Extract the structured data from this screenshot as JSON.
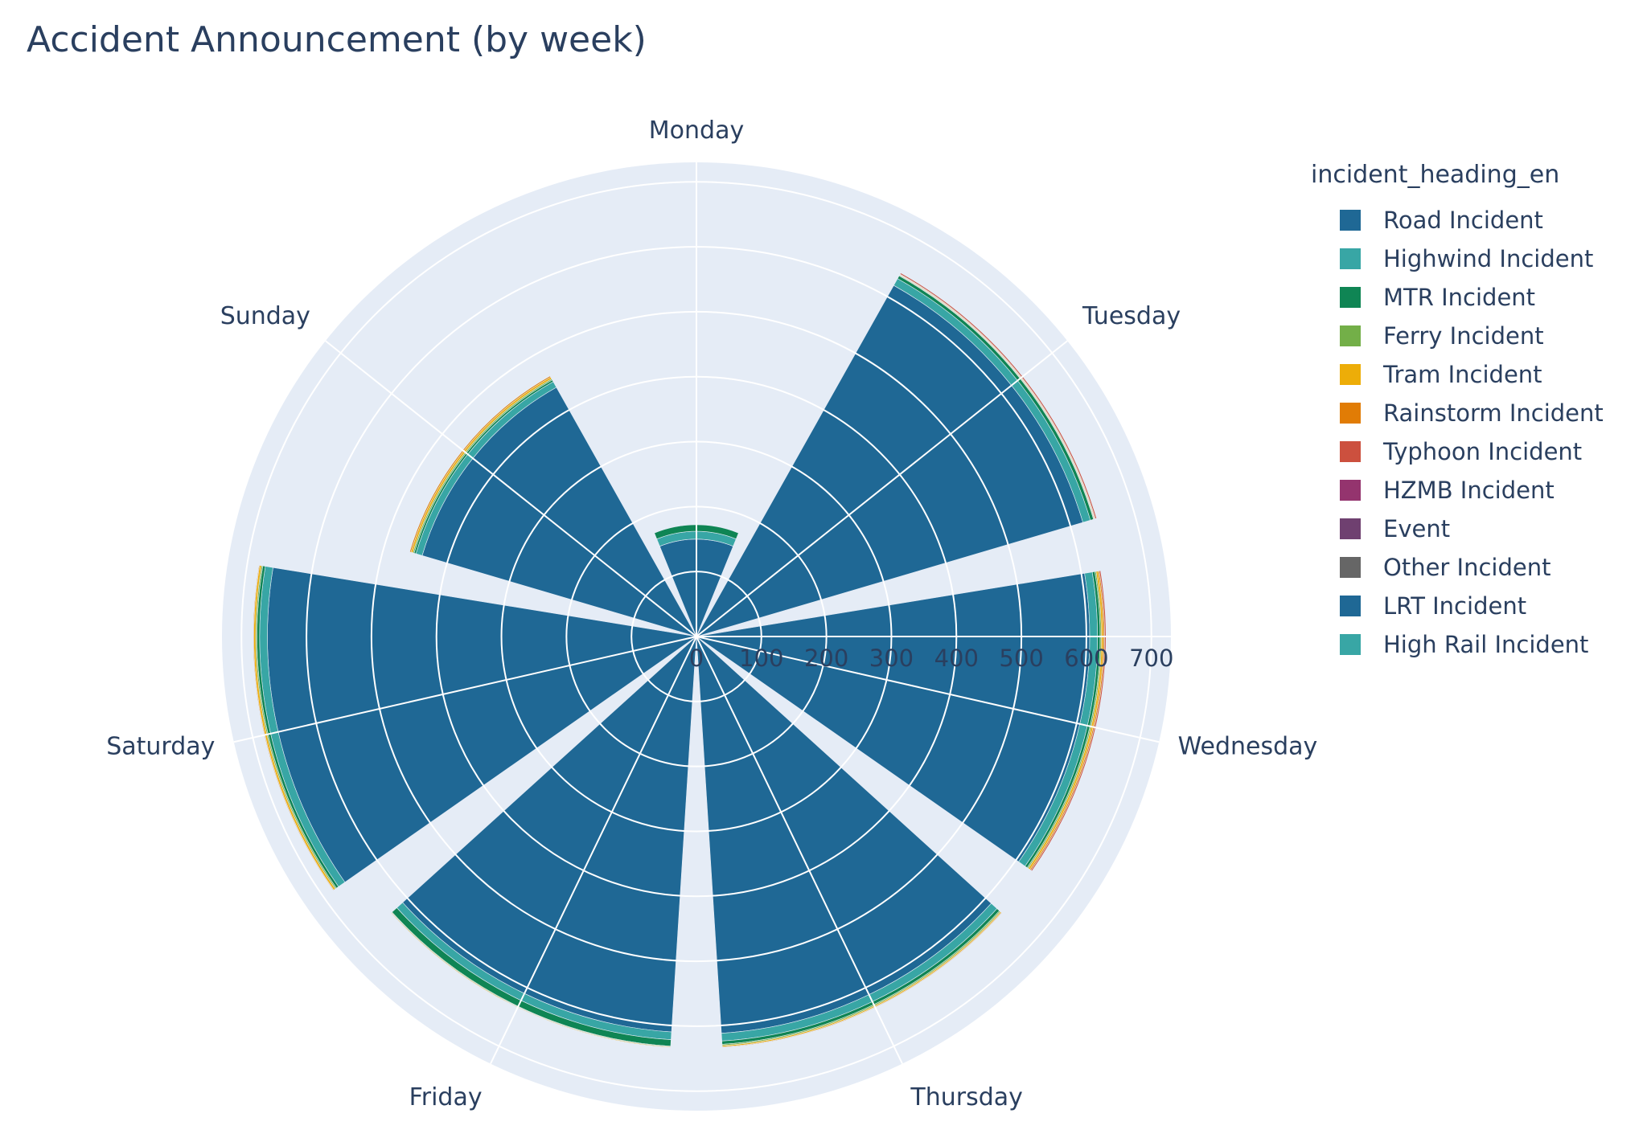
{
  "chart_data": {
    "type": "barpolar",
    "title": "Accident Announcement (by week)",
    "legend_title": "incident_heading_en",
    "legend_position": "right",
    "radial_range": [
      0,
      730
    ],
    "radial_ticks": [
      0,
      100,
      200,
      300,
      400,
      500,
      600,
      700
    ],
    "radial_tick_labels": [
      "0",
      "100",
      "200",
      "300",
      "400",
      "500",
      "600",
      "700"
    ],
    "grid": true,
    "categories": [
      "Monday",
      "Tuesday",
      "Wednesday",
      "Thursday",
      "Friday",
      "Saturday",
      "Sunday"
    ],
    "series": [
      {
        "name": "Road Incident",
        "color": "#1f6895",
        "values": [
          150,
          620,
          605,
          612,
          610,
          660,
          440
        ]
      },
      {
        "name": "Highwind Incident",
        "color": "#38a6a5",
        "values": [
          12,
          12,
          12,
          12,
          12,
          12,
          10
        ]
      },
      {
        "name": "MTR Incident",
        "color": "#0f8554",
        "values": [
          10,
          5,
          4,
          5,
          10,
          4,
          3
        ]
      },
      {
        "name": "Ferry Incident",
        "color": "#73af48",
        "values": [
          0,
          1,
          2,
          2,
          1,
          2,
          2
        ]
      },
      {
        "name": "Tram Incident",
        "color": "#edad08",
        "values": [
          0,
          1,
          3,
          2,
          1,
          3,
          3
        ]
      },
      {
        "name": "Rainstorm Incident",
        "color": "#e17c05",
        "values": [
          0,
          1,
          2,
          1,
          0,
          1,
          2
        ]
      },
      {
        "name": "Typhoon Incident",
        "color": "#cc503e",
        "values": [
          0,
          2,
          2,
          0,
          0,
          0,
          0
        ]
      },
      {
        "name": "HZMB Incident",
        "color": "#94346e",
        "values": [
          0,
          0,
          0,
          0,
          0,
          0,
          0
        ]
      },
      {
        "name": "Event",
        "color": "#6f4070",
        "values": [
          0,
          0,
          0,
          0,
          0,
          0,
          0
        ]
      },
      {
        "name": "Other Incident",
        "color": "#666666",
        "values": [
          0,
          0,
          0,
          0,
          0,
          0,
          0
        ]
      },
      {
        "name": "LRT Incident",
        "color": "#1f6895",
        "values": [
          0,
          0,
          0,
          0,
          0,
          0,
          0
        ]
      },
      {
        "name": "High Rail Incident",
        "color": "#38a6a5",
        "values": [
          0,
          0,
          0,
          0,
          0,
          0,
          0
        ]
      }
    ],
    "colors": {
      "polar_background": "#e5ecf6",
      "grid": "#ffffff",
      "text": "#2a3f5f"
    }
  }
}
